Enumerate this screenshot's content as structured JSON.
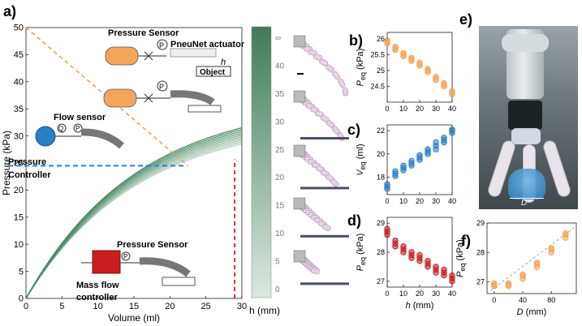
{
  "panels": {
    "a": "a)",
    "b": "b)",
    "c": "c)",
    "d": "d)",
    "e": "e)",
    "f": "f)"
  },
  "colorbar": {
    "ticks": [
      "∞",
      "40",
      "35",
      "30",
      "25",
      "20",
      "15",
      "10",
      "5",
      "0"
    ],
    "label": "h (mm)",
    "color_top": "#3f7c5a",
    "color_bottom": "#dbe9df"
  },
  "labels": {
    "pressure_sensor_top": "Pressure Sensor",
    "pneunet": "PneuNet actuator",
    "h_symbol": "h",
    "object": "Object",
    "flow_sensor": "Flow sensor",
    "pressure_controller_1": "Pressure",
    "pressure_controller_2": "Controller",
    "pressure_sensor_bottom": "Pressure Sensor",
    "mass_flow_1": "Mass flow",
    "mass_flow_2": "controller",
    "p_symbol": "P",
    "q_symbol": "Q",
    "photo_d": "D"
  },
  "colors": {
    "orange": "#f5a55a",
    "blue": "#2a7fc6",
    "red": "#c81e1e",
    "curve": "#4c8a66",
    "dashed_orange": "#f0a050",
    "dashed_blue": "#2a7fc6",
    "dashed_red": "#cc1f1f"
  },
  "chart_data": [
    {
      "id": "a",
      "type": "line",
      "xlabel": "Volume (ml)",
      "ylabel": "Pressure (kPa)",
      "xlim": [
        0,
        30
      ],
      "ylim": [
        0,
        50
      ],
      "xticks": [
        0,
        5,
        10,
        15,
        20,
        25,
        30
      ],
      "yticks": [
        0,
        5,
        10,
        15,
        20,
        25,
        30,
        35,
        40,
        45,
        50
      ],
      "series_count": 10,
      "series_end_pressure_range": [
        28.5,
        31.5
      ],
      "annotations": {
        "orange_line": [
          [
            0,
            50
          ],
          [
            22.5,
            24.5
          ]
        ],
        "blue_line_y": 24.5,
        "blue_line_x_end": 22,
        "red_line_x": 29
      }
    },
    {
      "id": "b",
      "type": "scatter",
      "color": "orange",
      "xlabel": "",
      "ylabel": "P_eq (kPa)",
      "xlim": [
        0,
        40
      ],
      "ylim": [
        24,
        26.2
      ],
      "xticks": [
        0,
        10,
        20,
        30,
        40
      ],
      "yticks": [
        24.5,
        25,
        25.5,
        26
      ],
      "x": [
        0,
        0,
        0,
        5,
        5,
        5,
        10,
        10,
        10,
        15,
        15,
        15,
        20,
        20,
        20,
        25,
        25,
        25,
        30,
        30,
        30,
        35,
        35,
        35,
        40,
        40,
        40
      ],
      "y": [
        25.9,
        25.95,
        25.85,
        25.75,
        25.7,
        25.65,
        25.55,
        25.5,
        25.45,
        25.4,
        25.35,
        25.3,
        25.25,
        25.2,
        25.15,
        25.05,
        25.0,
        24.95,
        24.8,
        24.75,
        24.7,
        24.6,
        24.55,
        24.5,
        24.3,
        24.25,
        24.35
      ]
    },
    {
      "id": "c",
      "type": "scatter",
      "color": "blue",
      "xlabel": "",
      "ylabel": "V_eq (ml)",
      "xlim": [
        0,
        40
      ],
      "ylim": [
        16.5,
        22.5
      ],
      "xticks": [
        0,
        10,
        20,
        30,
        40
      ],
      "yticks": [
        18,
        20,
        22
      ],
      "x": [
        0,
        0,
        0,
        5,
        5,
        5,
        10,
        10,
        10,
        15,
        15,
        15,
        20,
        20,
        20,
        25,
        25,
        25,
        30,
        30,
        30,
        35,
        35,
        35,
        40,
        40,
        40
      ],
      "y": [
        17.0,
        17.2,
        17.4,
        18.1,
        18.3,
        18.5,
        18.6,
        18.8,
        19.0,
        19.0,
        19.2,
        19.4,
        19.5,
        19.7,
        19.9,
        20.0,
        20.2,
        20.4,
        20.4,
        20.7,
        21.0,
        21.0,
        21.2,
        21.4,
        21.8,
        22.0,
        22.1
      ]
    },
    {
      "id": "d",
      "type": "scatter",
      "color": "red",
      "xlabel": "h (mm)",
      "ylabel": "P_eq (kPa)",
      "xlim": [
        0,
        40
      ],
      "ylim": [
        26.8,
        29.2
      ],
      "xticks": [
        0,
        10,
        20,
        30,
        40
      ],
      "yticks": [
        27,
        28,
        29
      ],
      "x": [
        0,
        0,
        0,
        5,
        5,
        5,
        10,
        10,
        10,
        15,
        15,
        15,
        20,
        20,
        20,
        25,
        25,
        25,
        30,
        30,
        30,
        35,
        35,
        35,
        40,
        40,
        40
      ],
      "y": [
        28.8,
        28.7,
        28.6,
        28.4,
        28.3,
        28.2,
        28.2,
        28.1,
        28.0,
        28.0,
        27.9,
        27.8,
        27.9,
        27.8,
        27.7,
        27.7,
        27.6,
        27.5,
        27.5,
        27.4,
        27.3,
        27.4,
        27.3,
        27.2,
        27.1,
        27.0,
        27.2
      ]
    },
    {
      "id": "f",
      "type": "scatter",
      "color": "orange",
      "xlabel": "D (mm)",
      "ylabel": "P_eq (kPa)",
      "xlim": [
        -10,
        115
      ],
      "ylim": [
        26.6,
        29.0
      ],
      "xticks": [
        0,
        40,
        80
      ],
      "yticks": [
        27,
        28,
        29
      ],
      "x": [
        0,
        0,
        0,
        20,
        20,
        20,
        40,
        40,
        40,
        60,
        60,
        60,
        80,
        80,
        80,
        100,
        100,
        100
      ],
      "y": [
        26.85,
        26.9,
        26.95,
        26.85,
        26.9,
        26.95,
        27.1,
        27.2,
        27.25,
        27.5,
        27.6,
        27.65,
        28.0,
        28.1,
        28.15,
        28.5,
        28.6,
        28.65
      ],
      "trend": [
        [
          -5,
          26.7
        ],
        [
          115,
          28.9
        ]
      ]
    }
  ]
}
